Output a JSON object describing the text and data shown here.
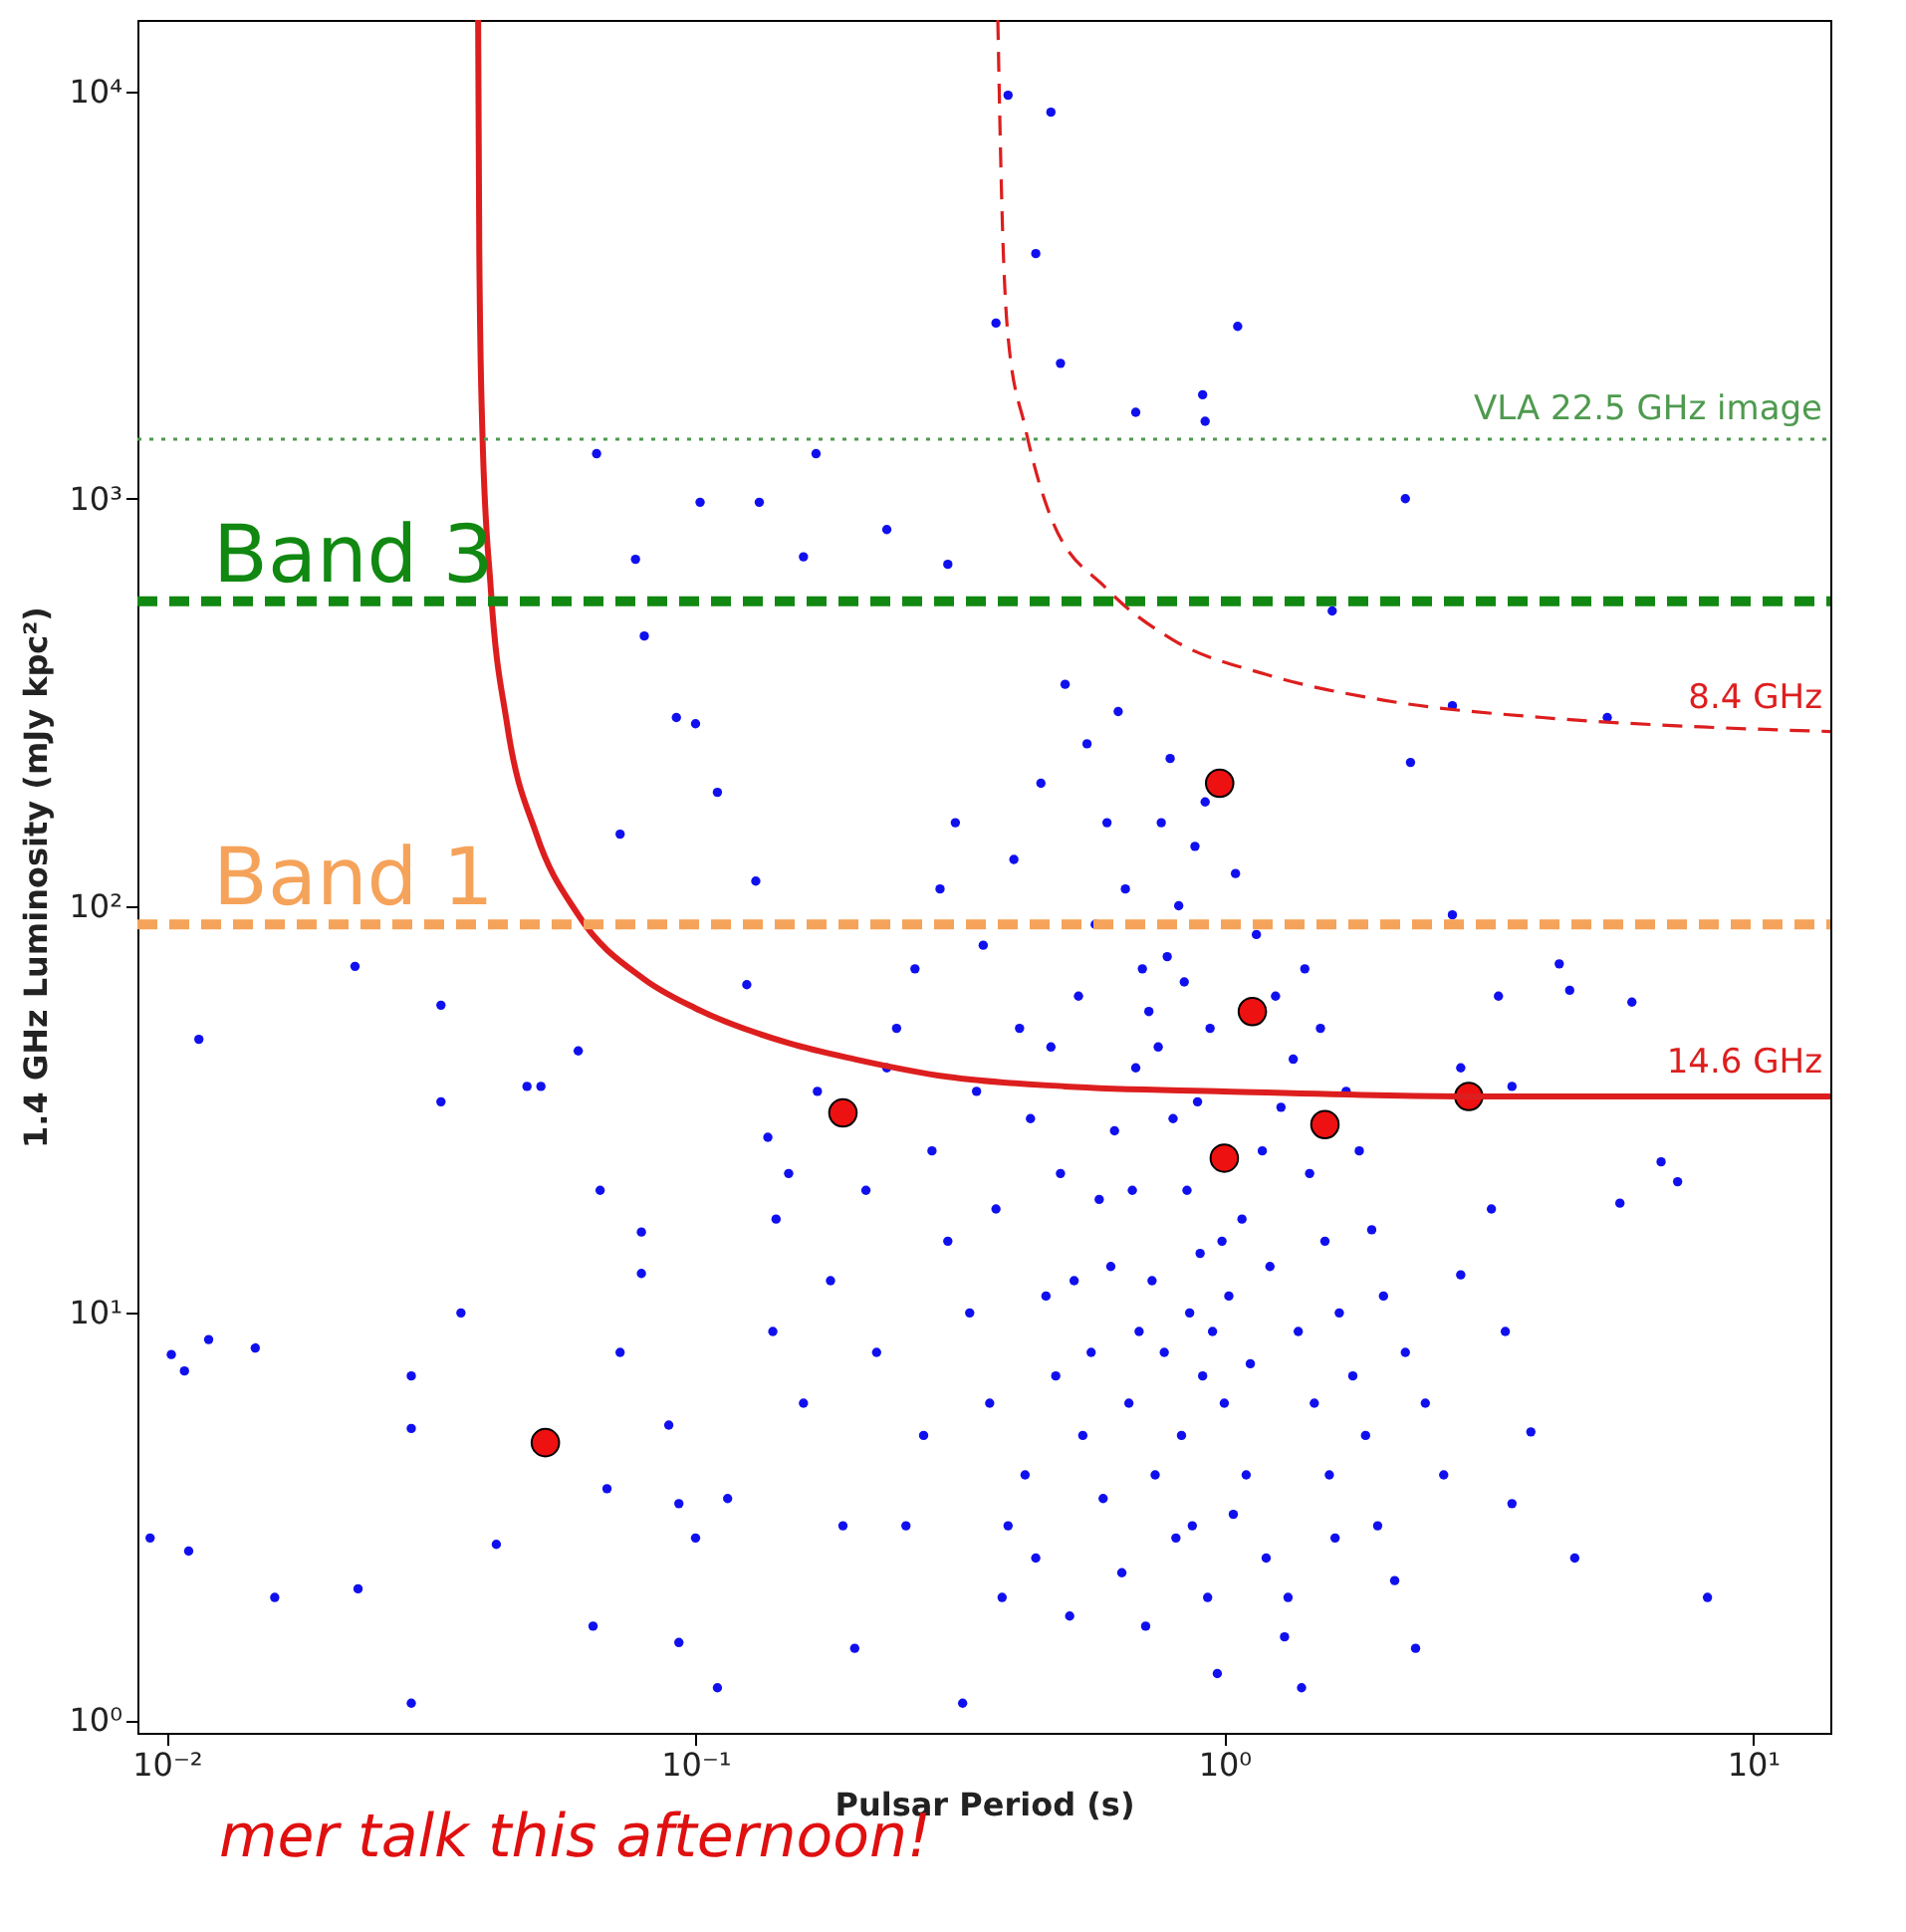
{
  "chart_data": {
    "type": "scatter",
    "xlabel": "Pulsar Period (s)",
    "ylabel": "1.4 GHz Luminosity (mJy kpc²)",
    "annotations": [
      "mer talk this afternoon!"
    ],
    "log": "xy",
    "xlim": [
      0.0088,
      14
    ],
    "ylim": [
      0.93,
      15000
    ],
    "xticks": [
      {
        "value": 0.01,
        "label": "10⁻²"
      },
      {
        "value": 0.1,
        "label": "10⁻¹"
      },
      {
        "value": 1,
        "label": "10⁰"
      },
      {
        "value": 10,
        "label": "10¹"
      }
    ],
    "yticks": [
      {
        "value": 1,
        "label": "10⁰"
      },
      {
        "value": 10,
        "label": "10¹"
      },
      {
        "value": 100,
        "label": "10²"
      },
      {
        "value": 1000,
        "label": "10³"
      },
      {
        "value": 10000,
        "label": "10⁴"
      }
    ],
    "grid": false,
    "ref_lines": [
      {
        "axis": "y",
        "value": 1400,
        "label": "VLA 22.5 GHz image",
        "color": "#4f9a4f",
        "line_style": "dotted"
      },
      {
        "axis": "y",
        "value": 560,
        "label": "Band 3",
        "color": "#118811",
        "line_style": "dashed"
      },
      {
        "axis": "y",
        "value": 90,
        "label": "Band 1",
        "color": "#f5a35a",
        "line_style": "dashed"
      }
    ],
    "series": [
      {
        "color": "#1010ee",
        "marker": "circle",
        "x": [
          0.39,
          0.47,
          0.44,
          0.37,
          0.49,
          1.06,
          0.68,
          0.91,
          0.92,
          0.065,
          0.169,
          0.102,
          0.132,
          0.16,
          0.077,
          0.23,
          0.3,
          0.0115,
          0.0227,
          0.033,
          0.033,
          0.0102,
          0.0108,
          0.012,
          0.0147,
          0.0093,
          0.011,
          0.016,
          0.023,
          0.029,
          0.029,
          0.029,
          0.036,
          0.042,
          0.048,
          0.051,
          0.06,
          0.066,
          0.064,
          0.068,
          0.072,
          0.079,
          0.079,
          0.089,
          0.093,
          0.093,
          0.1,
          0.115,
          0.11,
          0.08,
          0.072,
          0.092,
          0.1,
          0.11,
          0.13,
          0.125,
          0.137,
          0.142,
          2.2,
          1.6,
          2.7,
          2.25,
          5.9,
          4.3,
          4.5,
          5.3,
          6.7,
          7.2,
          5.6,
          8.2,
          4.6,
          3.5,
          3.8,
          3.4,
          3.2,
          2.8,
          3.5,
          3.3,
          2.7,
          2.8,
          0.2,
          0.25,
          0.22,
          0.3,
          0.28,
          0.24,
          0.35,
          0.4,
          0.45,
          0.5,
          0.55,
          0.6,
          0.65,
          0.7,
          0.75,
          0.8,
          0.85,
          0.9,
          0.95,
          1.0,
          1.1,
          1.2,
          1.3,
          1.4,
          0.32,
          0.38,
          0.42,
          0.48,
          0.52,
          0.58,
          0.62,
          0.68,
          0.72,
          0.78,
          0.82,
          0.88,
          0.92,
          1.05,
          1.15,
          1.25,
          1.35,
          1.45,
          1.55,
          1.65,
          1.75,
          1.85,
          1.95,
          2.1,
          2.3,
          0.27,
          0.33,
          0.37,
          0.43,
          0.47,
          0.53,
          0.57,
          0.63,
          0.67,
          0.73,
          0.77,
          0.83,
          0.87,
          0.93,
          0.97,
          1.02,
          1.08,
          1.18,
          1.28,
          1.38,
          1.48,
          1.58,
          1.7,
          1.8,
          1.9,
          2.0,
          2.2,
          2.4,
          2.6,
          0.21,
          0.23,
          0.26,
          0.29,
          0.31,
          0.34,
          0.36,
          0.39,
          0.41,
          0.44,
          0.46,
          0.49,
          0.51,
          0.54,
          0.56,
          0.59,
          0.61,
          0.64,
          0.66,
          0.69,
          0.71,
          0.74,
          0.76,
          0.79,
          0.81,
          0.84,
          0.86,
          0.89,
          0.91,
          0.94,
          0.99,
          1.04,
          1.12,
          1.22,
          1.32,
          1.42,
          1.52,
          1.62,
          0.18,
          0.17,
          0.16,
          0.19,
          0.15,
          0.14
        ],
        "values": [
          9800,
          8900,
          4000,
          2700,
          2150,
          2650,
          1630,
          1800,
          1550,
          1290,
          1290,
          980,
          980,
          720,
          710,
          840,
          690,
          47,
          71,
          57,
          33,
          7.9,
          7.2,
          8.6,
          8.2,
          2.8,
          2.6,
          2.0,
          2.1,
          7.0,
          5.2,
          1.1,
          10,
          2.7,
          36,
          36,
          44,
          20,
          1.7,
          3.7,
          8.0,
          12.5,
          15.8,
          5.3,
          3.4,
          1.55,
          2.8,
          3.5,
          1.2,
          460,
          150,
          290,
          280,
          190,
          115,
          64,
          27,
          17,
          1000,
          530,
          310,
          225,
          58,
          72,
          62,
          290,
          23.5,
          21,
          18.6,
          2.0,
          2.5,
          3.4,
          5.1,
          9.0,
          18,
          12.4,
          36,
          60,
          95,
          40,
          1.5,
          3,
          8,
          15,
          25,
          50,
          80,
          130,
          200,
          350,
          250,
          160,
          110,
          70,
          45,
          30,
          20,
          14,
          9,
          6,
          4,
          2.5,
          1.6,
          1.2,
          1.1,
          2,
          4,
          7,
          12,
          19,
          28,
          40,
          55,
          75,
          100,
          140,
          180,
          120,
          85,
          60,
          42,
          22,
          15,
          10,
          7,
          5,
          3,
          2.2,
          1.5,
          5,
          10,
          18,
          30,
          45,
          60,
          90,
          300,
          20,
          12,
          8,
          5,
          3,
          2,
          1.3,
          11,
          17,
          25,
          32,
          9,
          6,
          4,
          35,
          25,
          16,
          11,
          8,
          6,
          4,
          20,
          40,
          70,
          110,
          160,
          35,
          6,
          3,
          50,
          2.5,
          11,
          22,
          1.8,
          5,
          8,
          3.5,
          13,
          2.3,
          6,
          9,
          1.7,
          4,
          160,
          230,
          2.8,
          65,
          10,
          33,
          7,
          50,
          15,
          3.2,
          7.5,
          13,
          2,
          70,
          50,
          2.8,
          12,
          35,
          6,
          3,
          22,
          9
        ]
      },
      {
        "color": "#ee1111",
        "marker": "circle",
        "x": [
          0.052,
          0.19,
          0.98,
          1.13,
          1.0,
          1.55,
          2.9
        ],
        "values": [
          4.8,
          31,
          200,
          55,
          24,
          29,
          34
        ]
      },
      {
        "type": "line",
        "name": "14.6 GHz",
        "color": "#dd1e1e",
        "line_style": "solid",
        "marker": "none",
        "x": [
          0.0388,
          0.039,
          0.0395,
          0.041,
          0.044,
          0.05,
          0.06,
          0.08,
          0.1,
          0.15,
          0.2,
          0.3,
          0.5,
          1,
          3,
          14
        ],
        "values": [
          15000,
          4000,
          1500,
          600,
          280,
          150,
          95,
          66,
          56,
          46,
          42,
          38,
          36,
          35,
          34,
          34
        ]
      },
      {
        "type": "line",
        "name": "8.4 GHz",
        "color": "#dd1e1e",
        "line_style": "dashed",
        "marker": "none",
        "x": [
          0.373,
          0.38,
          0.39,
          0.42,
          0.47,
          0.6,
          0.8,
          1.2,
          2,
          4,
          8,
          14
        ],
        "values": [
          15000,
          5000,
          2500,
          1500,
          900,
          600,
          450,
          370,
          320,
          290,
          275,
          268
        ]
      }
    ]
  }
}
